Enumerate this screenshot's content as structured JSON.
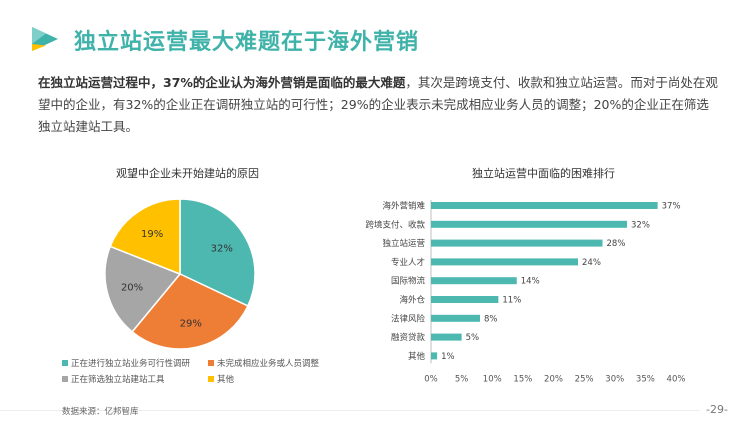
{
  "header": {
    "title": "独立站运营最大难题在于海外营销"
  },
  "summary": {
    "bold_text": "在独立站运营过程中，37%的企业认为海外营销是面临的最大难题",
    "rest_text": "，其次是跨境支付、收款和独立站运营。而对于尚处在观望中的企业，有32%的企业正在调研独立站的可行性；29%的企业表示未完成相应业务人员的调整；20%的企业正在筛选独立站建站工具。"
  },
  "chart_data": [
    {
      "type": "pie",
      "title": "观望中企业未开始建站的原因",
      "slices": [
        {
          "label": "正在进行独立站业务可行性调研",
          "value": 32,
          "display": "32%",
          "color": "#4db8b0"
        },
        {
          "label": "未完成相应业务或人员调整",
          "value": 29,
          "display": "29%",
          "color": "#ee7d35"
        },
        {
          "label": "正在筛选独立站建站工具",
          "value": 20,
          "display": "20%",
          "color": "#a6a6a6"
        },
        {
          "label": "其他",
          "value": 19,
          "display": "19%",
          "color": "#ffc000"
        }
      ],
      "legend_placement": "bottom"
    },
    {
      "type": "bar",
      "orientation": "horizontal",
      "title": "独立站运营中面临的困难排行",
      "categories": [
        "海外营销难",
        "跨境支付、收款",
        "独立站运营",
        "专业人才",
        "国际物流",
        "海外仓",
        "法律风险",
        "融资贷款",
        "其他"
      ],
      "values": [
        37,
        32,
        28,
        24,
        14,
        11,
        8,
        5,
        1
      ],
      "value_labels": [
        "37%",
        "32%",
        "28%",
        "24%",
        "14%",
        "11%",
        "8%",
        "5%",
        "1%"
      ],
      "xlim": [
        0,
        40
      ],
      "x_ticks": [
        "0%",
        "5%",
        "10%",
        "15%",
        "20%",
        "25%",
        "30%",
        "35%",
        "40%"
      ],
      "bar_color": "#4db8b0",
      "grid": false
    }
  ],
  "footer": {
    "source": "数据来源：亿邦智库",
    "page_number": "-29-"
  },
  "colors": {
    "accent": "#3fb2a9"
  }
}
